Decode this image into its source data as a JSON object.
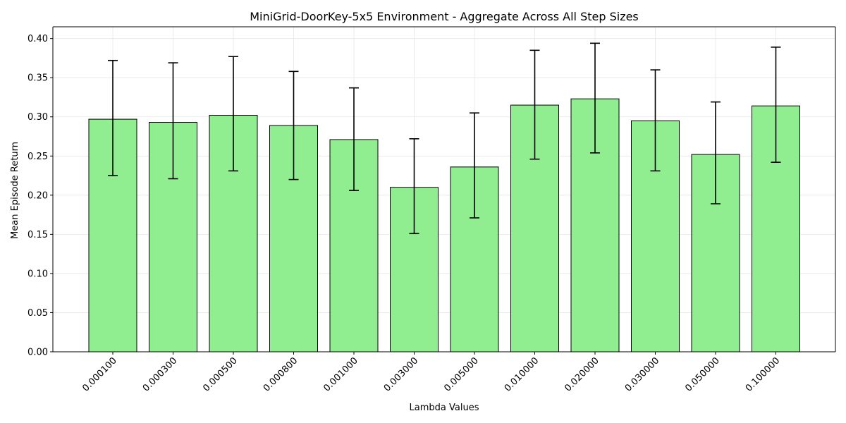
{
  "chart_data": {
    "type": "bar",
    "title": "MiniGrid-DoorKey-5x5 Environment - Aggregate Across All Step Sizes",
    "xlabel": "Lambda Values",
    "ylabel": "Mean Episode Return",
    "ylim": [
      0,
      0.415
    ],
    "yticks": [
      "0.00",
      "0.05",
      "0.10",
      "0.15",
      "0.20",
      "0.25",
      "0.30",
      "0.35",
      "0.40"
    ],
    "grid": true,
    "bar_color": "#90ee90",
    "categories": [
      "0.000100",
      "0.000300",
      "0.000500",
      "0.000800",
      "0.001000",
      "0.003000",
      "0.005000",
      "0.010000",
      "0.020000",
      "0.030000",
      "0.050000",
      "0.100000"
    ],
    "values": [
      0.297,
      0.293,
      0.302,
      0.289,
      0.271,
      0.21,
      0.236,
      0.315,
      0.323,
      0.295,
      0.252,
      0.314
    ],
    "error_upper": [
      0.372,
      0.369,
      0.377,
      0.358,
      0.337,
      0.272,
      0.305,
      0.385,
      0.394,
      0.36,
      0.319,
      0.389
    ],
    "error_lower": [
      0.225,
      0.221,
      0.231,
      0.22,
      0.206,
      0.151,
      0.171,
      0.246,
      0.254,
      0.231,
      0.189,
      0.242
    ]
  }
}
